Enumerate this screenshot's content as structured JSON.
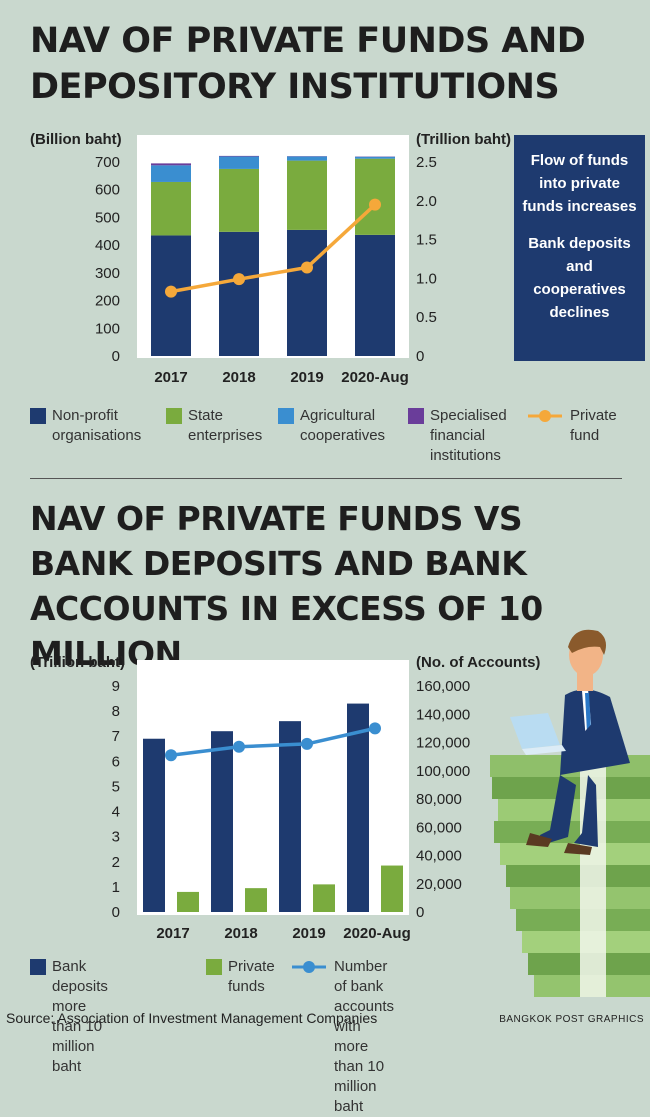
{
  "chart1": {
    "title": "NAV OF PRIVATE FUNDS AND DEPOSITORY INSTITUTIONS",
    "left_unit": "(Billion baht)",
    "right_unit": "(Trillion baht)",
    "info": [
      "Flow of funds into private funds increases",
      "Bank deposits and cooperatives declines"
    ],
    "legend": [
      {
        "label": "Non-profit\norganisations",
        "color": "#1e3a6f"
      },
      {
        "label": "State\nenterprises",
        "color": "#7aab3e"
      },
      {
        "label": "Agricultural\ncooperatives",
        "color": "#3a8ed0"
      },
      {
        "label": "Specialised\nfinancial\ninstitutions",
        "color": "#6a3d9a"
      },
      {
        "label": "Private\nfund",
        "color": "#f5a83a"
      }
    ]
  },
  "chart2": {
    "title": "NAV OF PRIVATE FUNDS VS BANK DEPOSITS AND BANK ACCOUNTS IN EXCESS OF 10 MILLION",
    "left_unit": "(Trillion baht)",
    "right_unit": "(No. of Accounts)",
    "legend": [
      {
        "label": "Bank deposits more\nthan 10 million baht",
        "color": "#1e3a6f"
      },
      {
        "label": "Private\nfunds",
        "color": "#7aab3e"
      },
      {
        "label": "Number of bank accounts with\nmore than 10 million baht",
        "color": "#3a8ed0"
      }
    ]
  },
  "chart_data": [
    {
      "type": "bar",
      "stacked": true,
      "categories": [
        "2017",
        "2018",
        "2019",
        "2020-Aug"
      ],
      "ylim": [
        0,
        700
      ],
      "yticks": [
        0,
        100,
        200,
        300,
        400,
        500,
        600,
        700
      ],
      "y2lim": [
        0,
        2.5
      ],
      "y2ticks": [
        "0",
        "0.5",
        "1.0",
        "1.5",
        "2.0",
        "2.5"
      ],
      "series": [
        {
          "name": "Non-profit organisations",
          "values": [
            435,
            448,
            455,
            437
          ],
          "color": "#1e3a6f"
        },
        {
          "name": "State enterprises",
          "values": [
            193,
            227,
            250,
            275
          ],
          "color": "#7aab3e"
        },
        {
          "name": "Agricultural cooperatives",
          "values": [
            60,
            45,
            15,
            7
          ],
          "color": "#3a8ed0"
        },
        {
          "name": "Specialised financial institutions",
          "values": [
            7,
            2,
            1,
            1
          ],
          "color": "#6a3d9a"
        }
      ],
      "line_series": {
        "name": "Private fund",
        "values": [
          0.83,
          0.99,
          1.14,
          1.95
        ],
        "color": "#f5a83a",
        "axis": "right"
      }
    },
    {
      "type": "bar",
      "categories": [
        "2017",
        "2018",
        "2019",
        "2020-Aug"
      ],
      "ylim": [
        0,
        9
      ],
      "yticks": [
        0,
        1,
        2,
        3,
        4,
        5,
        6,
        7,
        8,
        9
      ],
      "y2lim": [
        0,
        160000
      ],
      "y2ticks": [
        "0",
        "20,000",
        "40,000",
        "60,000",
        "80,000",
        "100,000",
        "120,000",
        "140,000",
        "160,000"
      ],
      "series": [
        {
          "name": "Bank deposits more than 10 million baht",
          "values": [
            6.9,
            7.2,
            7.6,
            8.3
          ],
          "color": "#1e3a6f"
        },
        {
          "name": "Private funds",
          "values": [
            0.8,
            0.95,
            1.1,
            1.85
          ],
          "color": "#7aab3e"
        }
      ],
      "line_series": {
        "name": "Number of bank accounts with more than 10 million baht",
        "values": [
          111000,
          117000,
          119000,
          130000
        ],
        "color": "#3a8ed0",
        "axis": "right"
      }
    }
  ],
  "footer": {
    "source": "Source: Association of Investment Management Companies",
    "credit": "BANGKOK POST GRAPHICS"
  }
}
